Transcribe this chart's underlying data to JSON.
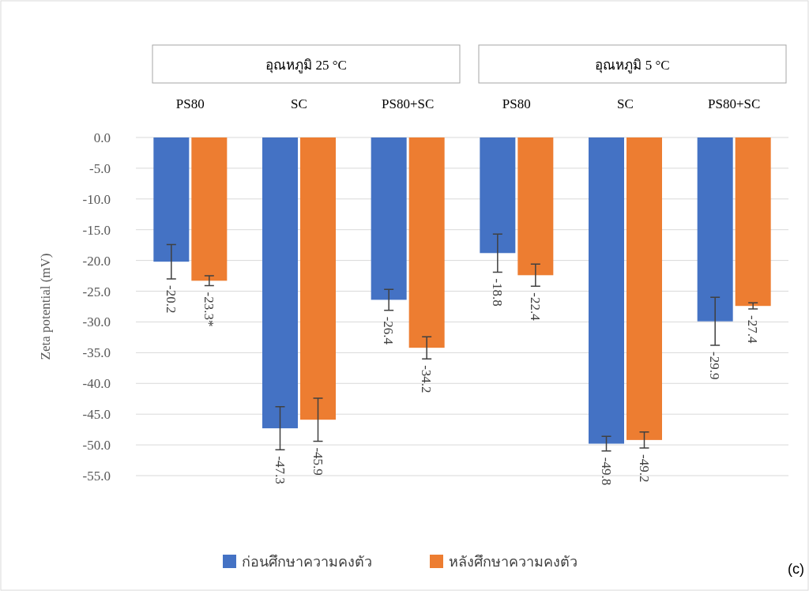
{
  "chart_data": {
    "type": "bar",
    "ylabel": "Zeta potential (mV)",
    "categories": [
      "PS80",
      "SC",
      "PS80+SC",
      "PS80",
      "SC",
      "PS80+SC"
    ],
    "series": [
      {
        "name": "ก่อนศึกษาความคงตัว",
        "color": "#4472c4",
        "values": [
          -20.2,
          -47.3,
          -26.4,
          -18.8,
          -49.8,
          -29.9
        ],
        "errors": [
          2.8,
          3.5,
          1.7,
          3.1,
          1.2,
          3.9
        ],
        "value_labels": [
          "-20.2",
          "-47.3",
          "-26.4",
          "-18.8",
          "-49.8",
          "-29.9"
        ]
      },
      {
        "name": "หลังศึกษาความคงตัว",
        "color": "#ed7d31",
        "values": [
          -23.3,
          -45.9,
          -34.2,
          -22.4,
          -49.2,
          -27.4
        ],
        "errors": [
          0.8,
          3.5,
          1.8,
          1.8,
          1.3,
          0.5
        ],
        "value_labels": [
          "-23.3*",
          "-45.9",
          "-34.2",
          "-22.4",
          "-49.2",
          "-27.4"
        ]
      }
    ],
    "ylim": [
      -55,
      0
    ],
    "yticks": [
      {
        "value": 0,
        "label": "0.0"
      },
      {
        "value": -5,
        "label": "-5.0"
      },
      {
        "value": -10,
        "label": "-10.0"
      },
      {
        "value": -15,
        "label": "-15.0"
      },
      {
        "value": -20,
        "label": "-20.0"
      },
      {
        "value": -25,
        "label": "-25.0"
      },
      {
        "value": -30,
        "label": "-30.0"
      },
      {
        "value": -35,
        "label": "-35.0"
      },
      {
        "value": -40,
        "label": "-40.0"
      },
      {
        "value": -45,
        "label": "-45.0"
      },
      {
        "value": -50,
        "label": "-50.0"
      },
      {
        "value": -55,
        "label": "-55.0"
      }
    ],
    "grid": "y",
    "legend": "bottom",
    "annotations": [
      "อุณหภูมิ 25 °C",
      "อุณหภูมิ 5 °C",
      "(c)"
    ]
  }
}
